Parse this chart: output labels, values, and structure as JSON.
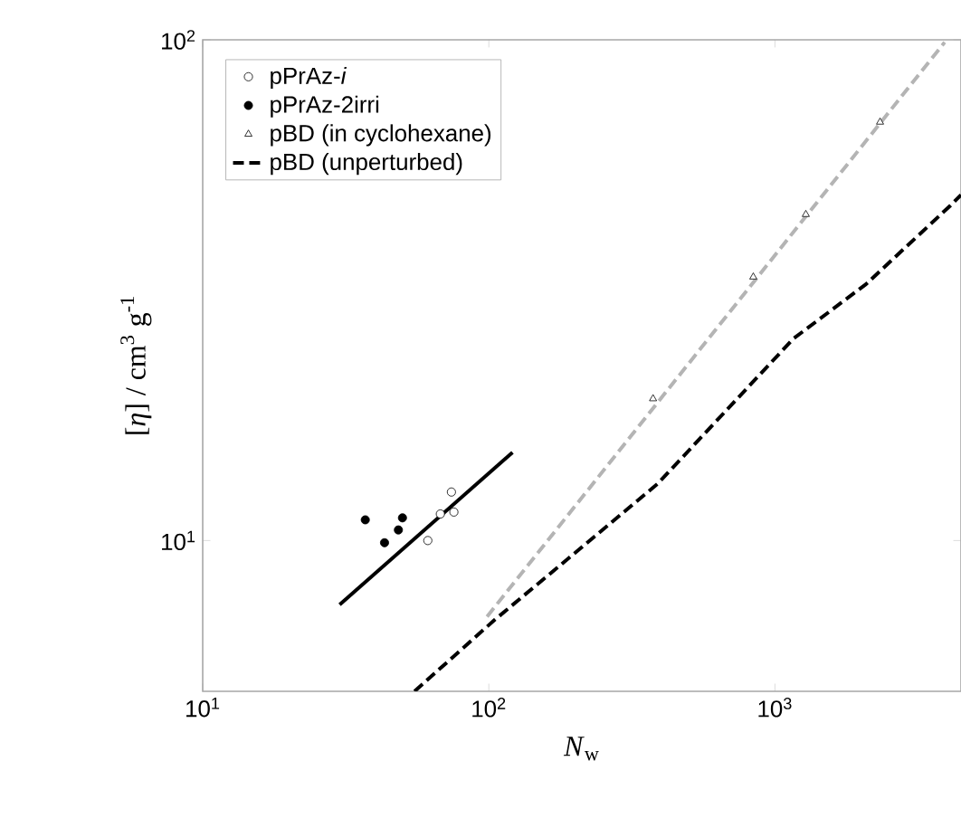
{
  "chart_data": {
    "type": "scatter",
    "xlabel": "*N*$_{w}$",
    "ylabel": "[*η*] / cm$^{3}$ g$^{-1}$",
    "log": "xy",
    "xlim": [
      10,
      4470
    ],
    "ylim": [
      5,
      100
    ],
    "xticks": [
      {
        "value": 10,
        "label": "10$^{1}$"
      },
      {
        "value": 100,
        "label": "10$^{2}$"
      },
      {
        "value": 1000,
        "label": "10$^{3}$"
      }
    ],
    "yticks": [
      {
        "value": 10,
        "label": "10$^{1}$"
      },
      {
        "value": 100,
        "label": "10$^{2}$"
      }
    ],
    "grid": false,
    "legend": "top left",
    "series": [
      {
        "name": "pPrAz-*i*",
        "marker": "circle",
        "color": "#ffffff",
        "x": [
          74,
          67.7,
          75.5,
          61.2
        ],
        "values": [
          12.5,
          11.3,
          11.4,
          10.0
        ]
      },
      {
        "name": "pPrAz-2irri",
        "marker": "circle",
        "color": "#000000",
        "x": [
          37,
          49.9,
          43.2,
          48.3
        ],
        "values": [
          11.0,
          11.1,
          9.9,
          10.5
        ]
      },
      {
        "name": "pBD (in cyclohexane)",
        "marker": "triangle",
        "color": "#ffffff",
        "x": [
          375,
          840,
          1282,
          2330
        ],
        "values": [
          19.2,
          33.6,
          44.8,
          68.5
        ]
      },
      {
        "name": "pBD (unperturbed)",
        "type": "line",
        "marker": "none",
        "line_style": "dashed",
        "color": "#000000",
        "x": [
          55,
          105,
          198,
          390,
          1160,
          2080,
          4110,
          4470
        ],
        "values": [
          5,
          6.95,
          9.4,
          13.0,
          25.3,
          32.5,
          46.7,
          49
        ]
      },
      {
        "type": "line",
        "marker": "none",
        "line_style": "solid",
        "color": "#000000",
        "x": [
          30.1,
          121
        ],
        "values": [
          7.45,
          15.0
        ]
      },
      {
        "type": "line",
        "marker": "none",
        "line_style": "dashed",
        "color": "#b4b4b4",
        "x": [
          98.6,
          3920
        ],
        "values": [
          7.05,
          98.9
        ]
      }
    ]
  }
}
